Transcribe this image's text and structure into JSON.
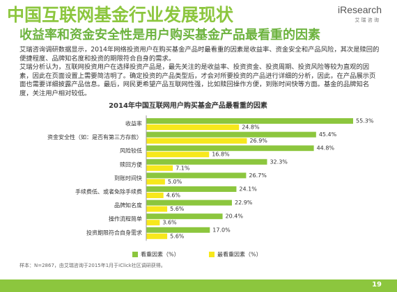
{
  "header": {
    "title": "中国互联网基金行业发展现状",
    "subtitle": "收益率和资金安全性是用户购买基金产品最看重的因素",
    "logo": "iResearch",
    "logo_sub": "艾 瑞 咨 询"
  },
  "body": {
    "paragraphs": [
      "艾瑞咨询调研数据显示，2014年网络投资用户在购买基金产品时最看重的因素是收益率、资金安全和产品风险，其次是赎回的便捷程度、品牌知名度和投资的期限符合自身的需求。",
      "艾瑞分析认为，互联网投资用户在选择投资产品是，最先关注的是收益率、投资资金、投资周期、投资风险等较为直观的因素，因此在页面设置上需要简洁明了。确定投资的产品类型后，才会对所要投资的产品进行详细的分析，因此，在产品展示页面也需要详细披露产品信息。最后，网民更希望产品互联网性强，比如赎回操作方便，到账时间快等方面。基金的品牌知名度，关注用户相对较低。"
    ]
  },
  "chart_data": {
    "type": "hbar",
    "title": "2014年中国互联网用户购买基金产品最看重的因素",
    "categories": [
      "收益率",
      "资金安全性（如：是否有第三方存款）",
      "风险较低",
      "赎回方便",
      "到账时间快",
      "手续费低、或者免除手续费",
      "品牌知名度",
      "操作流程简单",
      "投资期限符合自身需求"
    ],
    "series": [
      {
        "name": "看重因素（%）",
        "color": "#8cc63e",
        "values": [
          55.3,
          45.4,
          44.8,
          32.3,
          26.7,
          24.1,
          22.9,
          20.4,
          17.0
        ],
        "value_labels": [
          "55.3%",
          "45.4%",
          "44.8%",
          "32.3%",
          "26.7%",
          "24.1%",
          "22.9%",
          "20.4%",
          "17.0%"
        ]
      },
      {
        "name": "最看重因素（%）",
        "color": "#f7e81c",
        "values": [
          24.8,
          26.9,
          16.8,
          7.1,
          5.0,
          4.6,
          5.6,
          3.6,
          5.6
        ],
        "value_labels": [
          "24.8%",
          "26.9%",
          "16.8%",
          "7.1%",
          "5.0%",
          "4.6%",
          "5.6%",
          "3.6%",
          "5.6%"
        ]
      }
    ],
    "legend": "bottom"
  },
  "footer": {
    "note": "样本：N=2867，由艾瑞咨询于2015年1月于iClick社区调研获得。",
    "page": "19"
  }
}
